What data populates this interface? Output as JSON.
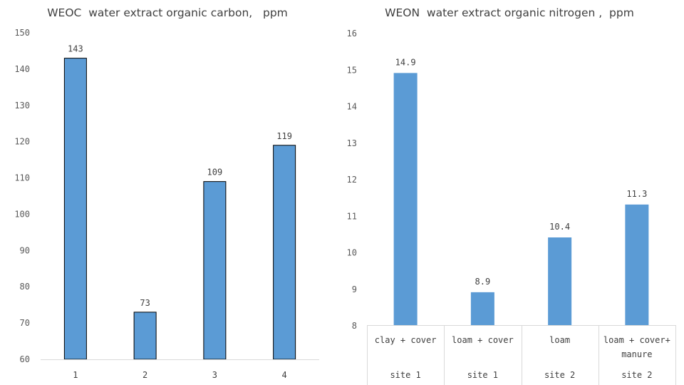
{
  "chart_data": [
    {
      "type": "bar",
      "title": "WEOC  water extract organic carbon,   ppm",
      "categories": [
        "1",
        "2",
        "3",
        "4"
      ],
      "values": [
        143,
        73,
        109,
        119
      ],
      "ylim": [
        60,
        150
      ],
      "yticks": [
        60,
        70,
        80,
        90,
        100,
        110,
        120,
        130,
        140,
        150
      ],
      "bar_color": "#5b9bd5",
      "bar_outline": "#000000",
      "grid": false,
      "legend": "none"
    },
    {
      "type": "bar",
      "title": "WEON  water extract organic nitrogen ,  ppm",
      "categories": [
        {
          "lines": [
            "clay + cover"
          ],
          "group": "site 1"
        },
        {
          "lines": [
            "loam + cover"
          ],
          "group": "site 1"
        },
        {
          "lines": [
            "loam"
          ],
          "group": "site 2"
        },
        {
          "lines": [
            "loam + cover+",
            "manure"
          ],
          "group": "site 2"
        }
      ],
      "values": [
        14.9,
        8.9,
        10.4,
        11.3
      ],
      "ylim": [
        8,
        16
      ],
      "yticks": [
        8,
        9,
        10,
        11,
        12,
        13,
        14,
        15,
        16
      ],
      "bar_color": "#5b9bd5",
      "grid": false,
      "legend": "none"
    }
  ]
}
